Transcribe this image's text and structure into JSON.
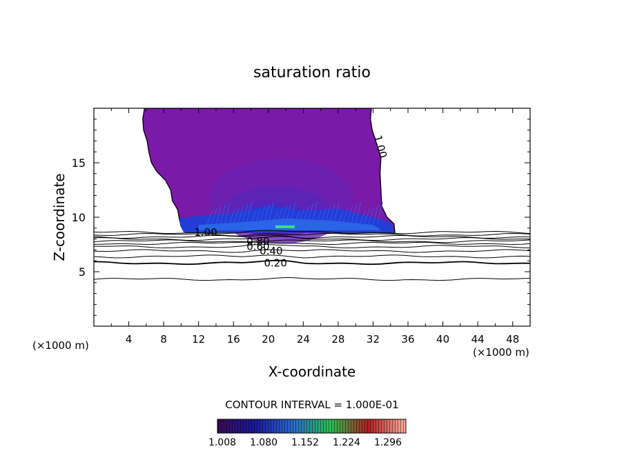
{
  "chart_data": {
    "type": "heatmap",
    "title": "saturation ratio",
    "xlabel": "X-coordinate",
    "ylabel": "Z-coordinate",
    "x_unit_left": "(×1000 m)",
    "x_unit_right": "(×1000 m)",
    "xlim": [
      0,
      50
    ],
    "ylim": [
      0,
      20
    ],
    "xticks": [
      4,
      8,
      12,
      16,
      20,
      24,
      28,
      32,
      36,
      40,
      44,
      48
    ],
    "yticks": [
      5,
      10,
      15
    ],
    "contour_interval_label": "CONTOUR INTERVAL = 1.000E-01",
    "contours": [
      {
        "label": "0.20",
        "value": 0.2,
        "label_x": 19.5,
        "height": 5.8
      },
      {
        "label": "0.40",
        "value": 0.4,
        "label_x": 19.0,
        "height": 6.9
      },
      {
        "label": "0.60",
        "value": 0.6,
        "label_x": 17.5,
        "height": 7.3
      },
      {
        "label": "0.80",
        "value": 0.8,
        "label_x": 17.5,
        "height": 7.8
      },
      {
        "label": "1.00",
        "value": 1.0,
        "label_x": 11.5,
        "height": 8.6
      },
      {
        "label": "1.00",
        "value": 1.0,
        "label_x": 32.5,
        "height": 17.5
      }
    ],
    "colorbar": {
      "ticks": [
        "1.008",
        "1.080",
        "1.152",
        "1.224",
        "1.296"
      ],
      "min": 1.008,
      "max": 1.32,
      "colors": [
        "#3a0a55",
        "#1a1a9a",
        "#2a6ad0",
        "#2ac050",
        "#b02020",
        "#ffb0a0"
      ]
    },
    "cloud_color": "#7a1aa8"
  }
}
